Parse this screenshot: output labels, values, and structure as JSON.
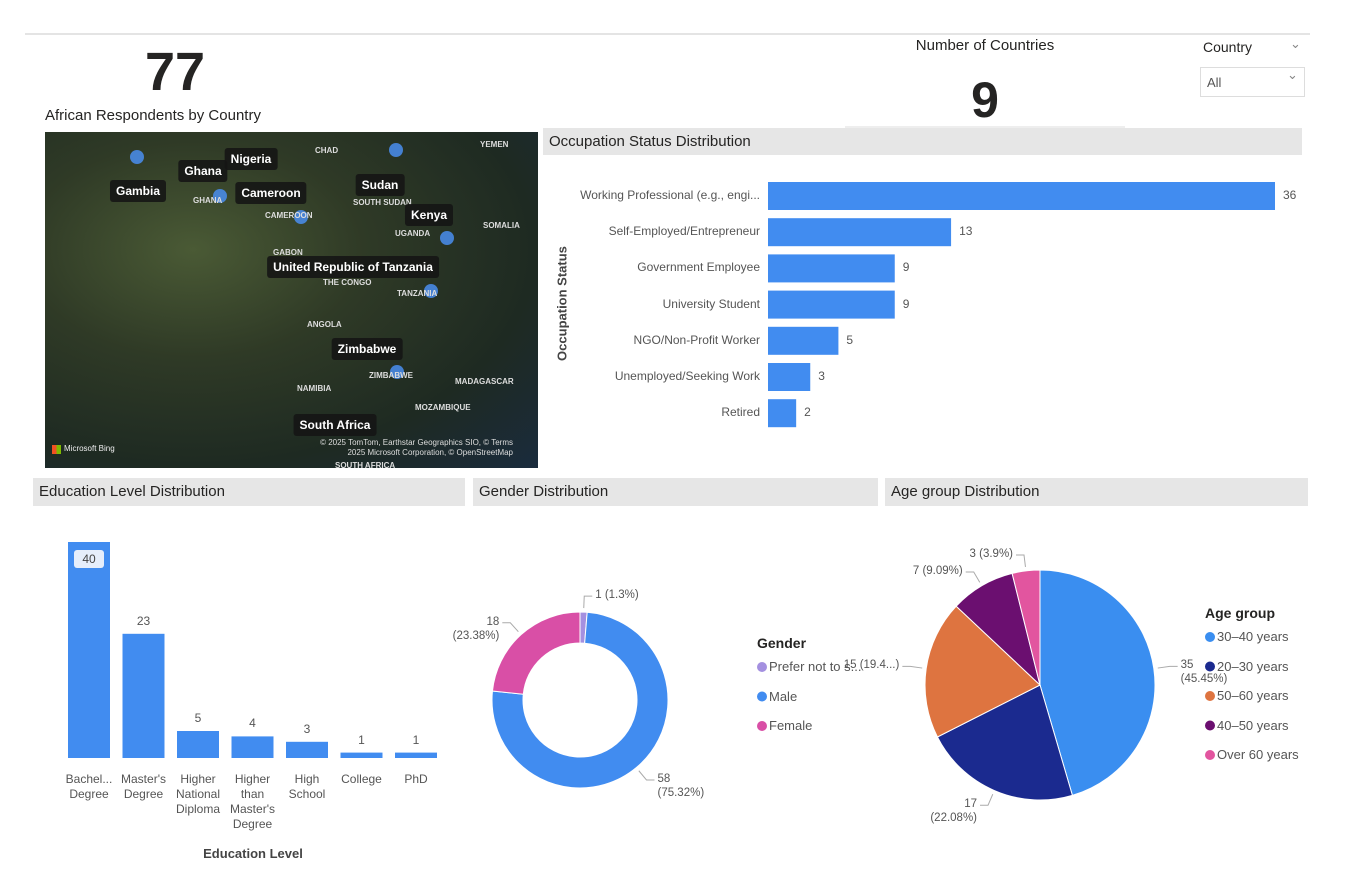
{
  "cards": [
    {
      "value": 77
    },
    {
      "label": "Number of Countries",
      "value": 9
    }
  ],
  "slicer": {
    "label": "Country",
    "selection": "All"
  },
  "map": {
    "title": "African Respondents by Country",
    "labels": [
      "Gambia",
      "Ghana",
      "Nigeria",
      "Cameroon",
      "Sudan",
      "Kenya",
      "United Republic of Tanzania",
      "Zimbabwe",
      "South Africa"
    ],
    "place_names": [
      "CHAD",
      "YEMEN",
      "SOUTH SUDAN",
      "UGANDA",
      "SOMALIA",
      "GABON",
      "THE CONGO",
      "ANGOLA",
      "NAMIBIA",
      "MADAGASCAR",
      "MOZAMBIQUE",
      "SOUTH AFRICA",
      "GHANA",
      "CAMEROON",
      "TANZANIA",
      "ZIMBABWE"
    ],
    "logo": "Microsoft Bing",
    "attribution": [
      "© 2025 TomTom, Earthstar Geographics SIO, © Terms",
      "2025 Microsoft Corporation, © OpenStreetMap"
    ]
  },
  "chart_data": [
    {
      "type": "bar",
      "orientation": "horizontal",
      "title": "Occupation Status Distribution",
      "y_label": "Occupation Status",
      "categories": [
        "Working Professional (e.g., engi...",
        "Self-Employed/Entrepreneur",
        "Government Employee",
        "University Student",
        "NGO/Non-Profit Worker",
        "Unemployed/Seeking Work",
        "Retired"
      ],
      "values": [
        36,
        13,
        9,
        9,
        5,
        3,
        2
      ],
      "color": "#418cf0"
    },
    {
      "type": "bar",
      "orientation": "vertical",
      "title": "Education Level Distribution",
      "x_label": "Education Level",
      "categories": [
        "Bachel... Degree",
        "Master's Degree",
        "Higher National Diploma",
        "Higher than Master's Degree",
        "High School",
        "College",
        "PhD"
      ],
      "values": [
        40,
        23,
        5,
        4,
        3,
        1,
        1
      ],
      "color": "#418cf0"
    },
    {
      "type": "donut",
      "title": "Gender Distribution",
      "legend_title": "Gender",
      "legend": "right",
      "categories": [
        "Prefer not to s...",
        "Male",
        "Female"
      ],
      "values": [
        1,
        58,
        18
      ],
      "value_labels": [
        "1 (1.3%)",
        "58 (75.32%)",
        "18 (23.38%)"
      ],
      "colors": [
        "#a490e0",
        "#418cf0",
        "#d94fa6"
      ]
    },
    {
      "type": "pie",
      "title": "Age group Distribution",
      "legend_title": "Age group",
      "legend": "right",
      "categories": [
        "30–40 years",
        "20–30 years",
        "50–60 years",
        "40–50 years",
        "Over 60 years"
      ],
      "values": [
        35,
        17,
        15,
        7,
        3
      ],
      "value_labels": [
        "35 (45.45%)",
        "17 (22.08%)",
        "15 (19.4...)",
        "7 (9.09%)",
        "3 (3.9%)"
      ],
      "colors": [
        "#3a8ef0",
        "#1b2a8f",
        "#de7440",
        "#6b0f70",
        "#e2559f"
      ]
    }
  ]
}
